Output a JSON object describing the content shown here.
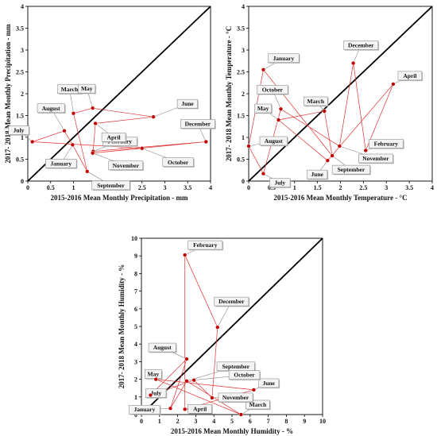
{
  "chart_data": [
    {
      "type": "scatter",
      "xlabel": "2015-2016 Mean Monthly Precipitation - mm",
      "ylabel": "2017- 2018 Mean Monthly Precipitation - mm",
      "xlim": [
        0,
        4
      ],
      "ylim": [
        0,
        4
      ],
      "xticks": [
        0,
        0.5,
        1,
        1.5,
        2,
        2.5,
        3,
        3.5,
        4
      ],
      "yticks": [
        0,
        0.5,
        1,
        1.5,
        2,
        2.5,
        3,
        3.5,
        4
      ],
      "x_tick_labels": [
        "0",
        "0.5",
        "1",
        "1.5",
        "2",
        "2.5",
        "3",
        "3.5",
        "4"
      ],
      "y_tick_labels": [
        "0",
        "0.5",
        "1",
        "1.5",
        "2",
        "2.5",
        "3",
        "3.5",
        "4"
      ],
      "reference_line": "y = x",
      "points": [
        {
          "label": "January",
          "x": 0.98,
          "y": 0.83
        },
        {
          "label": "February",
          "x": 1.43,
          "y": 0.68
        },
        {
          "label": "March",
          "x": 1.0,
          "y": 1.55
        },
        {
          "label": "April",
          "x": 1.48,
          "y": 1.32
        },
        {
          "label": "May",
          "x": 1.42,
          "y": 1.67
        },
        {
          "label": "June",
          "x": 2.75,
          "y": 1.47
        },
        {
          "label": "July",
          "x": 0.1,
          "y": 0.9
        },
        {
          "label": "August",
          "x": 0.8,
          "y": 1.15
        },
        {
          "label": "September",
          "x": 1.3,
          "y": 0.22
        },
        {
          "label": "October",
          "x": 2.5,
          "y": 0.75
        },
        {
          "label": "November",
          "x": 1.42,
          "y": 0.64
        },
        {
          "label": "December",
          "x": 3.9,
          "y": 0.9
        }
      ]
    },
    {
      "type": "scatter",
      "xlabel": "2015-2016 Mean Monthly Temperature - °C",
      "ylabel": "2017- 2018 Mean Monthly Temperature - °C",
      "xlim": [
        0,
        4
      ],
      "ylim": [
        0,
        4
      ],
      "xticks": [
        0,
        0.5,
        1,
        1.5,
        2,
        2.5,
        3,
        3.5,
        4
      ],
      "yticks": [
        0,
        0.5,
        1,
        1.5,
        2,
        2.5,
        3,
        3.5,
        4
      ],
      "x_tick_labels": [
        "0",
        "0.5",
        "1",
        "1.5",
        "2",
        "2.5",
        "3",
        "3.5",
        "4"
      ],
      "y_tick_labels": [
        "0",
        "0.5",
        "1",
        "1.5",
        "2",
        "2.5",
        "3",
        "3.5",
        "4"
      ],
      "reference_line": "y = x",
      "points": [
        {
          "label": "January",
          "x": 0.32,
          "y": 2.55
        },
        {
          "label": "February",
          "x": 2.55,
          "y": 0.7
        },
        {
          "label": "March",
          "x": 1.65,
          "y": 1.6
        },
        {
          "label": "April",
          "x": 3.15,
          "y": 2.22
        },
        {
          "label": "May",
          "x": 0.65,
          "y": 1.4
        },
        {
          "label": "June",
          "x": 1.72,
          "y": 0.47
        },
        {
          "label": "July",
          "x": 0.32,
          "y": 0.17
        },
        {
          "label": "August",
          "x": 0.0,
          "y": 0.8
        },
        {
          "label": "September",
          "x": 1.82,
          "y": 0.58
        },
        {
          "label": "October",
          "x": 0.7,
          "y": 1.65
        },
        {
          "label": "November",
          "x": 1.98,
          "y": 0.8
        },
        {
          "label": "December",
          "x": 2.28,
          "y": 2.7
        }
      ]
    },
    {
      "type": "scatter",
      "xlabel": "2015-2016 Mean Monthly Humidity - %",
      "ylabel": "2017- 2018 Mean Monthly Humidity - %",
      "xlim": [
        0,
        10
      ],
      "ylim": [
        0,
        10
      ],
      "xticks": [
        0,
        1,
        2,
        3,
        4,
        5,
        6,
        7,
        8,
        9,
        10
      ],
      "yticks": [
        0,
        1,
        2,
        3,
        4,
        5,
        6,
        7,
        8,
        9,
        10
      ],
      "x_tick_labels": [
        "0",
        "1",
        "2",
        "3",
        "4",
        "5",
        "6",
        "7",
        "8",
        "9",
        "10"
      ],
      "y_tick_labels": [
        "0",
        "1",
        "2",
        "3",
        "4",
        "5",
        "6",
        "7",
        "8",
        "9",
        "10"
      ],
      "reference_line": "y = x",
      "points": [
        {
          "label": "January",
          "x": 1.6,
          "y": 0.35
        },
        {
          "label": "February",
          "x": 2.4,
          "y": 9.05
        },
        {
          "label": "March",
          "x": 5.5,
          "y": 0.0
        },
        {
          "label": "April",
          "x": 2.4,
          "y": 0.3
        },
        {
          "label": "May",
          "x": 0.8,
          "y": 2.0
        },
        {
          "label": "June",
          "x": 6.2,
          "y": 1.4
        },
        {
          "label": "July",
          "x": 0.5,
          "y": 1.1
        },
        {
          "label": "August",
          "x": 2.5,
          "y": 3.15
        },
        {
          "label": "September",
          "x": 2.5,
          "y": 1.9
        },
        {
          "label": "October",
          "x": 2.9,
          "y": 1.95
        },
        {
          "label": "November",
          "x": 3.9,
          "y": 0.95
        },
        {
          "label": "December",
          "x": 4.2,
          "y": 4.95
        }
      ]
    }
  ],
  "colors": {
    "point": "#c00000",
    "connector": "#e03030",
    "reference_line": "#000000",
    "callout_fill": "#f4f4f4",
    "callout_border": "#777777"
  }
}
